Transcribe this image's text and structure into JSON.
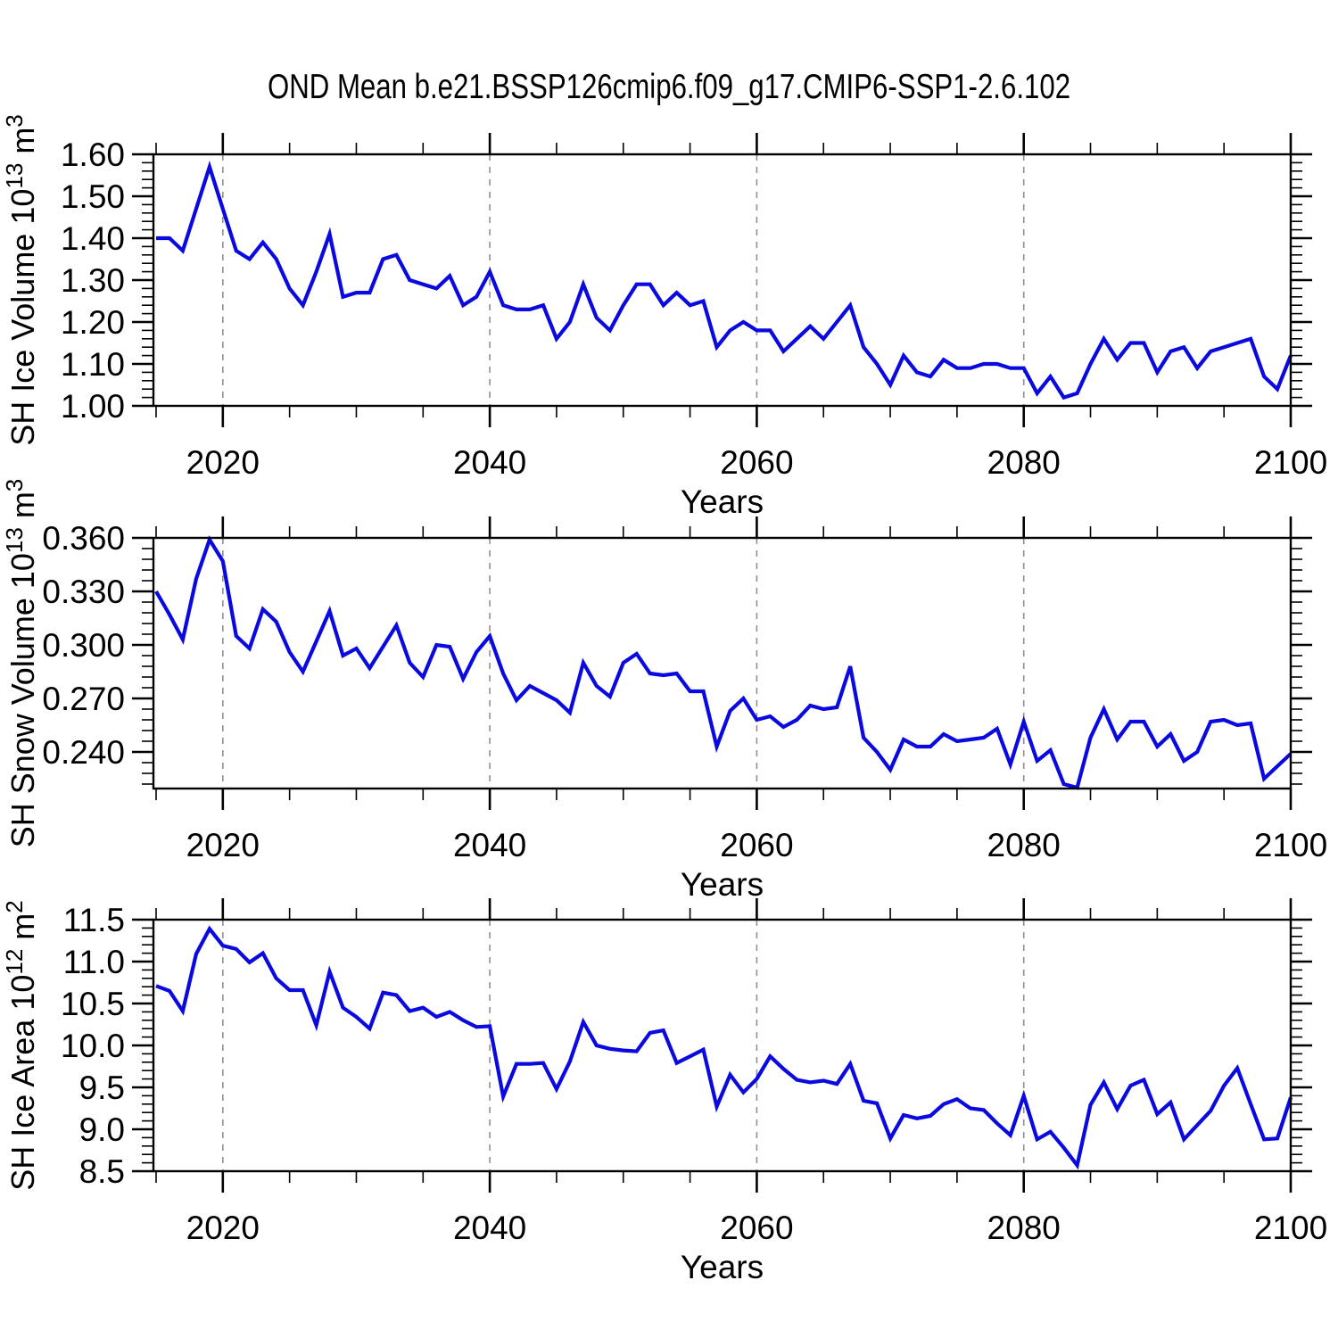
{
  "title": "OND Mean b.e21.BSSP126cmip6.f09_g17.CMIP6-SSP1-2.6.102",
  "line_color": "#0a0ae0",
  "grid_color": "#909090",
  "frame_color": "#000000",
  "x_axis": {
    "label": "Years",
    "range": [
      2014.8,
      2100
    ],
    "major_ticks": [
      2020,
      2040,
      2060,
      2080,
      2100
    ],
    "minor_step": 5,
    "gridlines": [
      2020,
      2040,
      2060,
      2080
    ]
  },
  "years": {
    "start": 2015,
    "end": 2100,
    "step": 1
  },
  "chart_data": [
    {
      "type": "line",
      "name": "sh-ice-volume",
      "ylabel": {
        "pre": "SH Ice Volume 10",
        "sup1": "13",
        "mid": " m",
        "sup2": "3"
      },
      "ylim": [
        1.0,
        1.6
      ],
      "yticks": [
        1.0,
        1.1,
        1.2,
        1.3,
        1.4,
        1.5,
        1.6
      ],
      "ytick_anchor": 1.0,
      "ytick_step": 0.1,
      "yminor_step": 0.02,
      "ydecimals": 2,
      "x_start": 2015,
      "values": [
        1.4,
        1.4,
        1.37,
        1.47,
        1.57,
        1.47,
        1.37,
        1.35,
        1.39,
        1.35,
        1.28,
        1.24,
        1.32,
        1.41,
        1.26,
        1.27,
        1.27,
        1.35,
        1.36,
        1.3,
        1.29,
        1.28,
        1.31,
        1.24,
        1.26,
        1.32,
        1.24,
        1.23,
        1.23,
        1.24,
        1.16,
        1.2,
        1.29,
        1.21,
        1.18,
        1.24,
        1.29,
        1.29,
        1.24,
        1.27,
        1.24,
        1.25,
        1.14,
        1.18,
        1.2,
        1.18,
        1.18,
        1.13,
        1.16,
        1.19,
        1.16,
        1.2,
        1.24,
        1.14,
        1.1,
        1.05,
        1.12,
        1.08,
        1.07,
        1.11,
        1.09,
        1.09,
        1.1,
        1.1,
        1.09,
        1.09,
        1.03,
        1.07,
        1.02,
        1.03,
        1.1,
        1.16,
        1.11,
        1.15,
        1.15,
        1.08,
        1.13,
        1.14,
        1.09,
        1.13,
        1.14,
        1.15,
        1.16,
        1.07,
        1.04,
        1.12
      ]
    },
    {
      "type": "line",
      "name": "sh-snow-volume",
      "ylabel": {
        "pre": "SH Snow Volume 10",
        "sup1": "13",
        "mid": " m",
        "sup2": "3"
      },
      "ylim": [
        0.2195,
        0.36
      ],
      "yticks": [
        0.24,
        0.27,
        0.3,
        0.33,
        0.36
      ],
      "ytick_anchor": 0.24,
      "ytick_step": 0.03,
      "yminor_step": 0.006,
      "ydecimals": 3,
      "x_start": 2015,
      "values": [
        0.33,
        0.317,
        0.303,
        0.337,
        0.359,
        0.347,
        0.305,
        0.298,
        0.32,
        0.313,
        0.296,
        0.285,
        0.302,
        0.319,
        0.294,
        0.298,
        0.287,
        0.299,
        0.311,
        0.29,
        0.282,
        0.3,
        0.299,
        0.281,
        0.296,
        0.305,
        0.284,
        0.269,
        0.277,
        0.273,
        0.269,
        0.262,
        0.29,
        0.277,
        0.271,
        0.29,
        0.295,
        0.284,
        0.283,
        0.284,
        0.274,
        0.274,
        0.243,
        0.263,
        0.27,
        0.258,
        0.26,
        0.254,
        0.258,
        0.266,
        0.264,
        0.265,
        0.288,
        0.248,
        0.24,
        0.23,
        0.247,
        0.243,
        0.243,
        0.25,
        0.246,
        0.247,
        0.248,
        0.253,
        0.233,
        0.257,
        0.235,
        0.241,
        0.222,
        0.22,
        0.248,
        0.264,
        0.247,
        0.257,
        0.257,
        0.243,
        0.25,
        0.235,
        0.24,
        0.257,
        0.258,
        0.255,
        0.256,
        0.225,
        0.232,
        0.239
      ]
    },
    {
      "type": "line",
      "name": "sh-ice-area",
      "ylabel": {
        "pre": "SH Ice Area 10",
        "sup1": "12",
        "mid": " m",
        "sup2": "2"
      },
      "ylim": [
        8.5,
        11.5
      ],
      "yticks": [
        8.5,
        9.0,
        9.5,
        10.0,
        10.5,
        11.0,
        11.5
      ],
      "ytick_anchor": 8.5,
      "ytick_step": 0.5,
      "yminor_step": 0.1,
      "ydecimals": 1,
      "x_start": 2015,
      "values": [
        10.71,
        10.65,
        10.41,
        11.09,
        11.39,
        11.19,
        11.15,
        10.99,
        11.1,
        10.8,
        10.66,
        10.66,
        10.24,
        10.88,
        10.45,
        10.34,
        10.2,
        10.63,
        10.6,
        10.41,
        10.45,
        10.34,
        10.4,
        10.3,
        10.22,
        10.23,
        9.39,
        9.78,
        9.78,
        9.79,
        9.48,
        9.81,
        10.28,
        10.0,
        9.96,
        9.94,
        9.93,
        10.15,
        10.18,
        9.79,
        9.87,
        9.95,
        9.27,
        9.65,
        9.44,
        9.6,
        9.87,
        9.72,
        9.59,
        9.56,
        9.58,
        9.54,
        9.78,
        9.34,
        9.31,
        8.89,
        9.17,
        9.13,
        9.16,
        9.3,
        9.36,
        9.25,
        9.23,
        9.07,
        8.93,
        9.4,
        8.88,
        8.97,
        8.78,
        8.57,
        9.29,
        9.56,
        9.24,
        9.52,
        9.59,
        9.18,
        9.32,
        8.88,
        9.05,
        9.22,
        9.52,
        9.73,
        9.3,
        8.88,
        8.89,
        9.38
      ]
    }
  ]
}
